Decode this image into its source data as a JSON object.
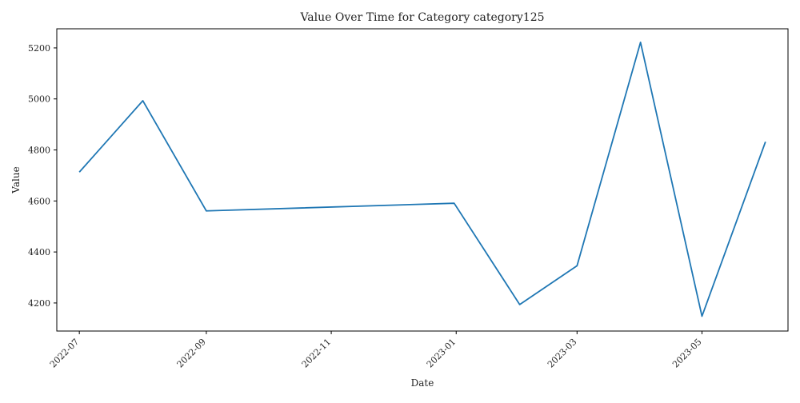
{
  "chart_data": {
    "type": "line",
    "title": "Value Over Time for Category category125",
    "xlabel": "Date",
    "ylabel": "Value",
    "x": [
      "2022-07-01",
      "2022-08-01",
      "2022-09-01",
      "2022-12-31",
      "2023-02-01",
      "2023-03-01",
      "2023-04-01",
      "2023-05-01",
      "2023-06-01"
    ],
    "series": [
      {
        "values": [
          4713,
          4993,
          4561,
          4591,
          4194,
          4346,
          5222,
          4148,
          4832
        ]
      }
    ],
    "xlim": [
      "2022-06-20",
      "2023-06-12"
    ],
    "ylim": [
      4090,
      5275
    ],
    "x_ticks": [
      "2022-07",
      "2022-09",
      "2022-11",
      "2023-01",
      "2023-03",
      "2023-05"
    ],
    "y_ticks": [
      4200,
      4400,
      4600,
      4800,
      5000,
      5200
    ],
    "grid": false,
    "line_color": "#1f77b4"
  }
}
